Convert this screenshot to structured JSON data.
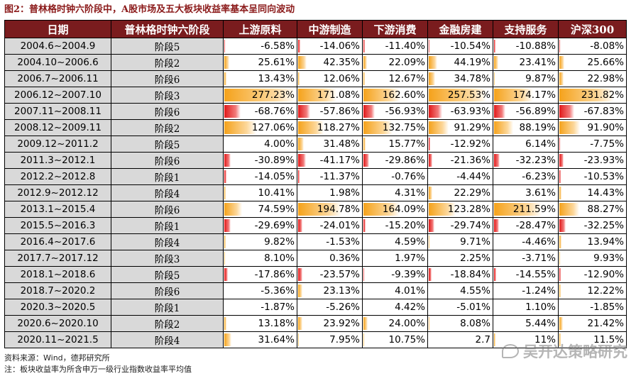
{
  "title": "图2：普林格时钟六阶段中，A股市场及五大板块收益率基本呈同向波动",
  "columns": [
    "日期",
    "普林格时钟六阶段",
    "上游原料",
    "中游制造",
    "下游消费",
    "金融房建",
    "支持服务",
    "沪深300"
  ],
  "rows": [
    {
      "date": "2004.6~2004.9",
      "stage": "阶段5",
      "values": [
        "-6.58%",
        "-14.06%",
        "-11.40%",
        "-10.54%",
        "-10.88%",
        "-8.08%"
      ]
    },
    {
      "date": "2004.10~2006.6",
      "stage": "阶段2",
      "values": [
        "25.61%",
        "42.35%",
        "22.09%",
        "44.19%",
        "23.41%",
        "25.66%"
      ]
    },
    {
      "date": "2006.7~2006.11",
      "stage": "阶段6",
      "values": [
        "13.43%",
        "12.06%",
        "12.67%",
        "34.78%",
        "9.87%",
        "22.98%"
      ]
    },
    {
      "date": "2006.12~2007.10",
      "stage": "阶段3",
      "values": [
        "277.23%",
        "171.08%",
        "162.60%",
        "257.53%",
        "174.17%",
        "231.82%"
      ]
    },
    {
      "date": "2007.11~2008.11",
      "stage": "阶段6",
      "values": [
        "-68.76%",
        "-57.86%",
        "-56.93%",
        "-63.93%",
        "-56.89%",
        "-67.83%"
      ]
    },
    {
      "date": "2008.12~2009.11",
      "stage": "阶段2",
      "values": [
        "127.06%",
        "118.27%",
        "132.75%",
        "91.29%",
        "88.19%",
        "91.90%"
      ]
    },
    {
      "date": "2009.12~2011.2",
      "stage": "阶段5",
      "values": [
        "4.00%",
        "31.48%",
        "15.77%",
        "-12.92%",
        "6.14%",
        "-7.75%"
      ]
    },
    {
      "date": "2011.3~2012.1",
      "stage": "阶段6",
      "values": [
        "-30.89%",
        "-41.17%",
        "-29.86%",
        "-21.36%",
        "-32.23%",
        "-23.93%"
      ]
    },
    {
      "date": "2012.2~2012.8",
      "stage": "阶段1",
      "values": [
        "-14.05%",
        "-11.37%",
        "-0.76%",
        "-4.44%",
        "-6.23%",
        "-10.53%"
      ]
    },
    {
      "date": "2012.9~2012.12",
      "stage": "阶段4",
      "values": [
        "10.41%",
        "1.98%",
        "4.31%",
        "22.29%",
        "3.61%",
        "14.43%"
      ]
    },
    {
      "date": "2013.1~2015.4",
      "stage": "阶段6",
      "values": [
        "74.59%",
        "194.78%",
        "164.09%",
        "123.28%",
        "211.59%",
        "88.27%"
      ]
    },
    {
      "date": "2015.5~2016.3",
      "stage": "阶段1",
      "values": [
        "-29.69%",
        "-24.01%",
        "-15.20%",
        "-29.74%",
        "-28.47%",
        "-32.25%"
      ]
    },
    {
      "date": "2016.4~2017.6",
      "stage": "阶段4",
      "values": [
        "9.82%",
        "-1.53%",
        "4.59%",
        "9.71%",
        "-4.46%",
        "13.94%"
      ]
    },
    {
      "date": "2017.7~2017.12",
      "stage": "阶段3",
      "values": [
        "8.10%",
        "0.36%",
        "1.97%",
        "2.25%",
        "-3.71%",
        "9.93%"
      ]
    },
    {
      "date": "2018.1~2018.6",
      "stage": "阶段5",
      "values": [
        "-17.86%",
        "-23.57%",
        "-9.39%",
        "-18.84%",
        "-14.55%",
        "-12.90%"
      ]
    },
    {
      "date": "2018.7~2020.2",
      "stage": "阶段6",
      "values": [
        "-5.36%",
        "23.13%",
        "4.01%",
        "4.55%",
        "-1.24%",
        "12.22%"
      ]
    },
    {
      "date": "2020.3~2020.5",
      "stage": "阶段1",
      "values": [
        "-1.87%",
        "-5.26%",
        "4.42%",
        "-5.01%",
        "1.10%",
        "-1.85%"
      ]
    },
    {
      "date": "2020.6~2020.10",
      "stage": "阶段2",
      "values": [
        "13.18%",
        "23.92%",
        "24.00%",
        "8.08%",
        "5.44%",
        "21.42%"
      ]
    },
    {
      "date": "2020.11~2021.5",
      "stage": "阶段4",
      "values": [
        "31.64%",
        "7.95%",
        "10.75%",
        "2.7",
        "11%",
        "11.5%"
      ]
    }
  ],
  "footer": {
    "source": "资料来源：Wind，德邦研究所",
    "note": "注：板块收益率为所含申万一级行业指数收益率平均值"
  },
  "watermark": "吴开达策略研究",
  "colors": {
    "header_bg": "#7a1c1e",
    "positive_bar": "#f5a21b",
    "negative_bar": "#e01818",
    "label_cell": "#d9d9d9"
  }
}
